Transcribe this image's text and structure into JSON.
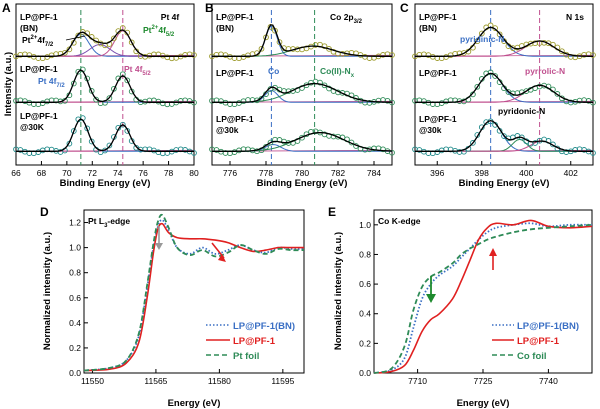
{
  "chart_data": [
    {
      "type": "line",
      "panel": "A",
      "title": "Pt 4f",
      "xlabel": "Binding Energy (eV)",
      "ylabel": "Intensity (a.u.)",
      "xlim": [
        66,
        80
      ],
      "xticks": [
        66,
        68,
        70,
        72,
        74,
        76,
        78,
        80
      ],
      "x_reversed": false,
      "dashed_lines": [
        {
          "x": 71.1,
          "color": "#2e8b57"
        },
        {
          "x": 74.4,
          "color": "#c0508f"
        }
      ],
      "stacks": [
        {
          "name": "LP@PF-1 (BN)",
          "peaks": [
            {
              "x": 71.1,
              "h": 0.65,
              "w": 0.9,
              "color": "#3a6fc4"
            },
            {
              "x": 72.6,
              "h": 0.35,
              "w": 1.1,
              "color": "#7a4fb0"
            },
            {
              "x": 74.4,
              "h": 0.75,
              "w": 0.9,
              "color": "#c0508f"
            }
          ],
          "baseline": 0.05
        },
        {
          "name": "LP@PF-1",
          "peaks": [
            {
              "x": 71.1,
              "h": 0.95,
              "w": 0.8,
              "color": "#3a6fc4"
            },
            {
              "x": 74.4,
              "h": 0.78,
              "w": 0.8,
              "color": "#c0508f"
            }
          ],
          "baseline": 0.05
        },
        {
          "name": "LP@PF-1 @30K",
          "peaks": [
            {
              "x": 71.1,
              "h": 0.95,
              "w": 0.8,
              "color": "#3a6fc4"
            },
            {
              "x": 74.4,
              "h": 0.78,
              "w": 0.8,
              "color": "#c0508f"
            }
          ],
          "baseline": 0.05
        }
      ],
      "labels": [
        "LP@PF-1\n(BN)",
        "LP@PF-1",
        "LP@PF-1\n@30K"
      ],
      "annotations": [
        "Pt 4f",
        "Pt2+4f5/2",
        "Pt2+4f7/2",
        "Pt 4f7/2",
        "Pt 4f5/2"
      ]
    },
    {
      "type": "line",
      "panel": "B",
      "title": "Co 2p3/2",
      "xlabel": "Binding Energy (eV)",
      "ylabel": "",
      "xlim": [
        775,
        785
      ],
      "xticks": [
        776,
        778,
        780,
        782,
        784
      ],
      "x_reversed": false,
      "dashed_lines": [
        {
          "x": 778.3,
          "color": "#3a6fc4"
        },
        {
          "x": 780.7,
          "color": "#2e8b57"
        }
      ],
      "stacks": [
        {
          "name": "LP@PF-1 (BN)",
          "peaks": [
            {
              "x": 778.3,
              "h": 0.9,
              "w": 0.45,
              "color": "#3a6fc4"
            },
            {
              "x": 780.6,
              "h": 0.3,
              "w": 1.6,
              "color": "#2e8b57"
            }
          ],
          "baseline": 0.05
        },
        {
          "name": "LP@PF-1",
          "peaks": [
            {
              "x": 778.3,
              "h": 0.35,
              "w": 0.5,
              "color": "#3a6fc4"
            },
            {
              "x": 780.7,
              "h": 0.55,
              "w": 1.8,
              "color": "#2e8b57"
            }
          ],
          "baseline": 0.05
        },
        {
          "name": "LP@PF-1 @30k",
          "peaks": [
            {
              "x": 778.4,
              "h": 0.2,
              "w": 0.6,
              "color": "#3a6fc4"
            },
            {
              "x": 781.0,
              "h": 0.55,
              "w": 1.9,
              "color": "#2e8b57"
            }
          ],
          "baseline": 0.05
        }
      ],
      "labels": [
        "LP@PF-1\n(BN)",
        "LP@PF-1",
        "LP@PF-1\n@30k"
      ],
      "annotations": [
        "Co 2p3/2",
        "Co",
        "Co(II)-Nx"
      ]
    },
    {
      "type": "line",
      "panel": "C",
      "title": "N 1s",
      "xlabel": "Binding Energy (eV)",
      "ylabel": "",
      "xlim": [
        395,
        403
      ],
      "xticks": [
        396,
        398,
        400,
        402
      ],
      "x_reversed": false,
      "dashed_lines": [
        {
          "x": 398.4,
          "color": "#3a6fc4"
        },
        {
          "x": 400.6,
          "color": "#c0508f"
        }
      ],
      "stacks": [
        {
          "name": "LP@PF-1 (BN)",
          "peaks": [
            {
              "x": 398.4,
              "h": 0.85,
              "w": 0.8,
              "color": "#3a6fc4"
            },
            {
              "x": 400.6,
              "h": 0.45,
              "w": 0.9,
              "color": "#c0508f"
            }
          ],
          "baseline": 0.05
        },
        {
          "name": "LP@PF-1",
          "peaks": [
            {
              "x": 398.4,
              "h": 0.85,
              "w": 0.75,
              "color": "#3a6fc4"
            },
            {
              "x": 400.6,
              "h": 0.5,
              "w": 0.9,
              "color": "#c0508f"
            }
          ],
          "baseline": 0.05
        },
        {
          "name": "LP@PF-1 @30k",
          "peaks": [
            {
              "x": 398.4,
              "h": 0.9,
              "w": 0.7,
              "color": "#3a6fc4"
            },
            {
              "x": 399.7,
              "h": 0.35,
              "w": 0.45,
              "color": "#2e8b57"
            },
            {
              "x": 400.7,
              "h": 0.3,
              "w": 0.7,
              "color": "#c0508f"
            }
          ],
          "baseline": 0.05
        }
      ],
      "labels": [
        "LP@PF-1\n(BN)",
        "LP@PF-1",
        "LP@PF-1\n@30k"
      ],
      "annotations": [
        "N 1s",
        "pyridinic-N",
        "pyrrolic-N",
        "pyridonic-N"
      ]
    },
    {
      "type": "line",
      "panel": "D",
      "title": "Pt L3-edge",
      "xlabel": "Energy (eV)",
      "ylabel": "Normalized intensity (a.u.)",
      "xlim": [
        11548,
        11600
      ],
      "ylim": [
        0,
        1.3
      ],
      "xticks": [
        11550,
        11565,
        11580,
        11595
      ],
      "yticks": [
        0.0,
        0.2,
        0.4,
        0.6,
        0.8,
        1.0,
        1.2
      ],
      "legend_position": "bottom-right",
      "series": [
        {
          "name": "LP@PF-1(BN)",
          "color": "#3a6fc4",
          "style": "dotted",
          "x": [
            11548,
            11554,
            11558,
            11561,
            11563,
            11564.5,
            11565.5,
            11566.5,
            11568,
            11570,
            11573,
            11576,
            11579,
            11582,
            11585,
            11588,
            11591,
            11594,
            11597,
            11600
          ],
          "y": [
            0.02,
            0.04,
            0.1,
            0.3,
            0.7,
            1.02,
            1.17,
            1.22,
            1.14,
            1.0,
            0.95,
            1.0,
            0.95,
            0.98,
            1.02,
            0.98,
            0.96,
            1.0,
            0.99,
            0.99
          ]
        },
        {
          "name": "LP@PF-1",
          "color": "#e02020",
          "style": "solid",
          "x": [
            11548,
            11554,
            11558,
            11561,
            11563,
            11564.5,
            11565.5,
            11566.5,
            11568,
            11570,
            11573,
            11576,
            11579,
            11582,
            11585,
            11588,
            11591,
            11594,
            11597,
            11600
          ],
          "y": [
            0.02,
            0.03,
            0.08,
            0.25,
            0.62,
            0.98,
            1.15,
            1.19,
            1.12,
            1.08,
            1.07,
            1.07,
            1.06,
            1.04,
            1.0,
            0.97,
            0.98,
            1.0,
            1.0,
            1.0
          ]
        },
        {
          "name": "Pt foil",
          "color": "#2e8b57",
          "style": "dashed",
          "x": [
            11548,
            11554,
            11558,
            11561,
            11563,
            11564.5,
            11565.5,
            11566.5,
            11568,
            11570,
            11573,
            11576,
            11579,
            11582,
            11585,
            11588,
            11591,
            11594,
            11597,
            11600
          ],
          "y": [
            0.02,
            0.04,
            0.1,
            0.32,
            0.72,
            1.05,
            1.21,
            1.26,
            1.16,
            1.0,
            0.94,
            0.98,
            0.93,
            0.96,
            1.02,
            0.98,
            0.95,
            0.99,
            0.98,
            0.98
          ]
        }
      ]
    },
    {
      "type": "line",
      "panel": "E",
      "title": "Co K-edge",
      "xlabel": "Energy (eV)",
      "ylabel": "Normalized intensity (a.u.)",
      "xlim": [
        7700,
        7750
      ],
      "ylim": [
        0,
        1.1
      ],
      "xticks": [
        7710,
        7725,
        7740
      ],
      "yticks": [
        0.0,
        0.2,
        0.4,
        0.6,
        0.8,
        1.0
      ],
      "legend_position": "bottom-right",
      "series": [
        {
          "name": "LP@PF-1(BN)",
          "color": "#3a6fc4",
          "style": "dotted",
          "x": [
            7700,
            7704,
            7707,
            7709,
            7711,
            7713,
            7715,
            7718,
            7720,
            7722,
            7724,
            7726,
            7728,
            7732,
            7736,
            7740,
            7745,
            7750
          ],
          "y": [
            0.0,
            0.02,
            0.1,
            0.3,
            0.5,
            0.6,
            0.66,
            0.72,
            0.78,
            0.84,
            0.9,
            0.95,
            0.98,
            1.0,
            1.01,
            0.99,
            1.0,
            1.0
          ]
        },
        {
          "name": "LP@PF-1",
          "color": "#e02020",
          "style": "solid",
          "x": [
            7700,
            7704,
            7707,
            7709,
            7711,
            7713,
            7715,
            7718,
            7720,
            7722,
            7724,
            7726,
            7728,
            7732,
            7736,
            7740,
            7745,
            7750
          ],
          "y": [
            0.0,
            0.01,
            0.05,
            0.15,
            0.28,
            0.36,
            0.4,
            0.5,
            0.62,
            0.76,
            0.9,
            0.98,
            1.01,
            1.0,
            1.03,
            0.99,
            0.98,
            0.99
          ]
        },
        {
          "name": "Co foil",
          "color": "#2e8b57",
          "style": "dashed",
          "x": [
            7700,
            7704,
            7707,
            7709,
            7711,
            7713,
            7715,
            7718,
            7720,
            7722,
            7724,
            7726,
            7728,
            7732,
            7736,
            7740,
            7745,
            7750
          ],
          "y": [
            0.0,
            0.03,
            0.18,
            0.42,
            0.58,
            0.65,
            0.68,
            0.74,
            0.8,
            0.84,
            0.87,
            0.9,
            0.92,
            0.95,
            0.97,
            0.98,
            0.99,
            1.0
          ]
        }
      ]
    }
  ],
  "ui": {
    "panel_letters": [
      "A",
      "B",
      "C",
      "D",
      "E"
    ],
    "legend_d": [
      "LP@PF-1(BN)",
      "LP@PF-1",
      "Pt foil"
    ],
    "legend_e": [
      "LP@PF-1(BN)",
      "LP@PF-1",
      "Co foil"
    ],
    "colors": {
      "blue": "#3a6fc4",
      "red": "#e02020",
      "green": "#2e8b57",
      "magenta": "#c0508f",
      "olive": "#9c9a2a",
      "arrow_red": "#e02020",
      "arrow_gray": "#999999",
      "arrow_green": "#1e8a2e"
    }
  }
}
